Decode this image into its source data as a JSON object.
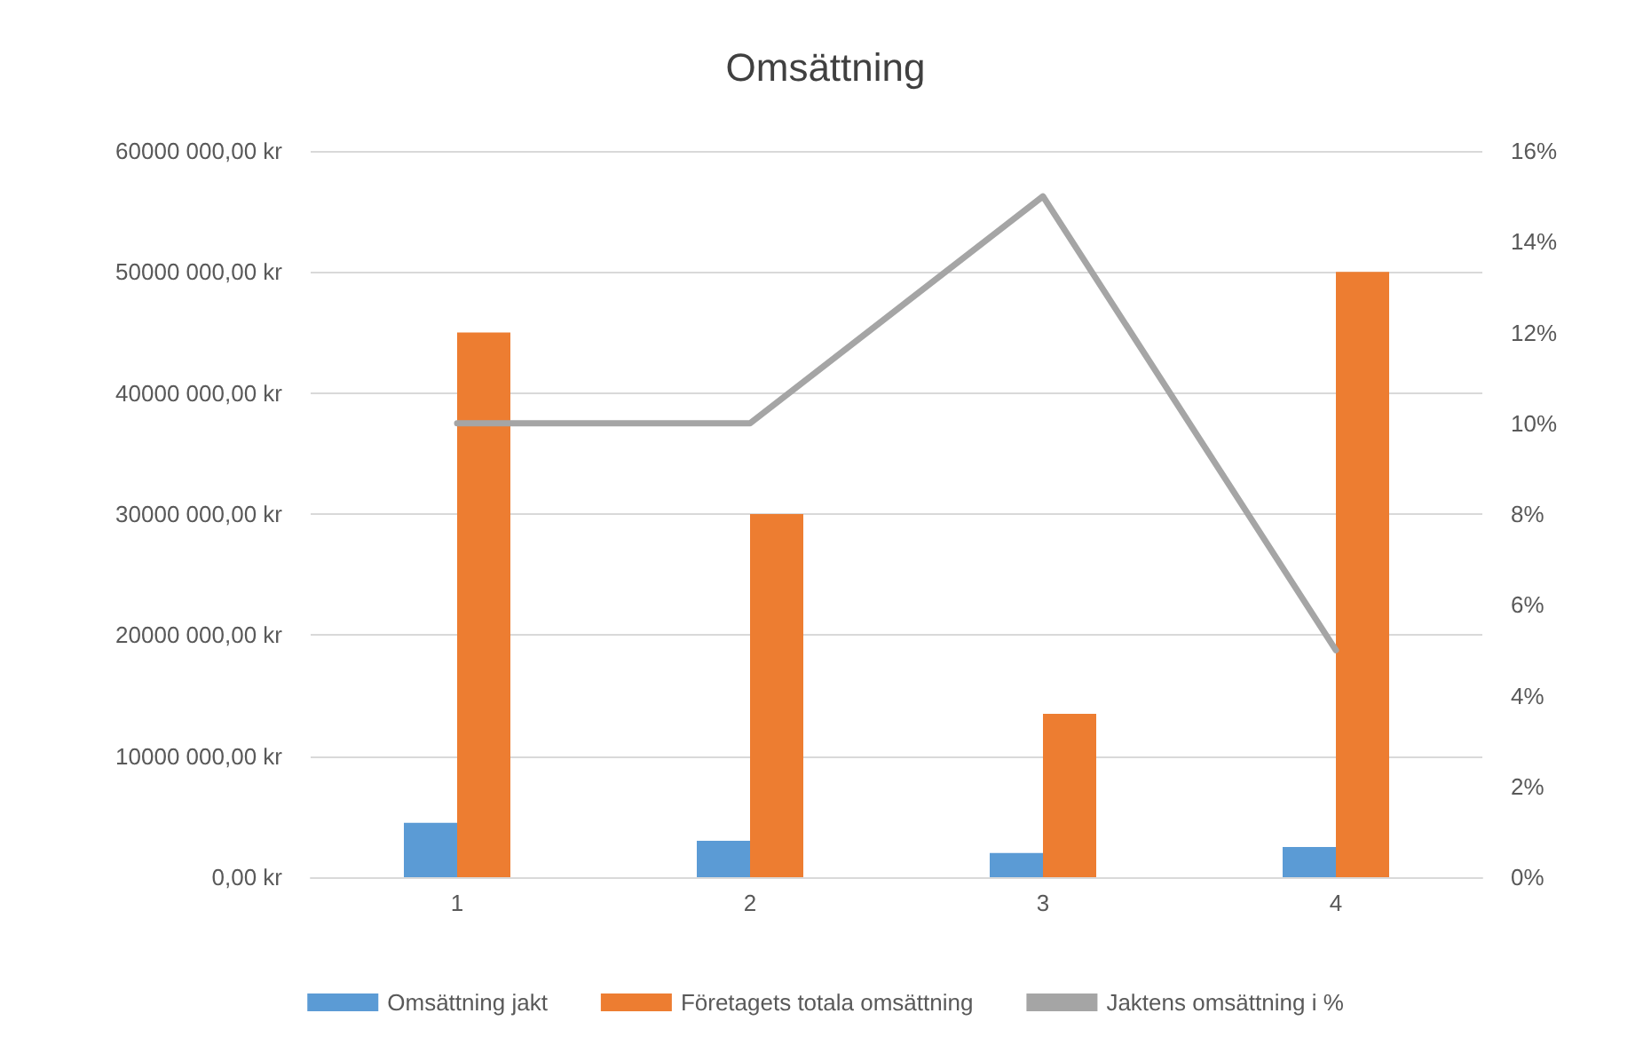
{
  "chart_data": {
    "type": "bar",
    "title": "Omsättning",
    "categories": [
      "1",
      "2",
      "3",
      "4"
    ],
    "series": [
      {
        "name": "Omsättning jakt",
        "color": "#5b9bd5",
        "values": [
          4500000,
          3000000,
          2000000,
          2500000
        ]
      },
      {
        "name": "Företagets totala omsättning",
        "color": "#ed7d31",
        "values": [
          45000000,
          30000000,
          13500000,
          50000000
        ]
      },
      {
        "name": "Jaktens omsättning i %",
        "color": "#a5a5a5",
        "type": "line",
        "axis": "y2",
        "values": [
          10,
          10,
          15,
          5
        ]
      }
    ],
    "ylim": [
      0,
      60000000
    ],
    "yticks": [
      {
        "value": 0,
        "label": "0,00 kr"
      },
      {
        "value": 10000000,
        "label": "10000 000,00 kr"
      },
      {
        "value": 20000000,
        "label": "20000 000,00 kr"
      },
      {
        "value": 30000000,
        "label": "30000 000,00 kr"
      },
      {
        "value": 40000000,
        "label": "40000 000,00 kr"
      },
      {
        "value": 50000000,
        "label": "50000 000,00 kr"
      },
      {
        "value": 60000000,
        "label": "60000 000,00 kr"
      }
    ],
    "y2lim": [
      0,
      16
    ],
    "y2ticks": [
      {
        "value": 0,
        "label": "0%"
      },
      {
        "value": 2,
        "label": "2%"
      },
      {
        "value": 4,
        "label": "4%"
      },
      {
        "value": 6,
        "label": "6%"
      },
      {
        "value": 8,
        "label": "8%"
      },
      {
        "value": 10,
        "label": "10%"
      },
      {
        "value": 12,
        "label": "12%"
      },
      {
        "value": 14,
        "label": "14%"
      },
      {
        "value": 16,
        "label": "16%"
      }
    ],
    "grid": "y",
    "legend": "bottom",
    "marker": "none",
    "line_style": "solid"
  }
}
